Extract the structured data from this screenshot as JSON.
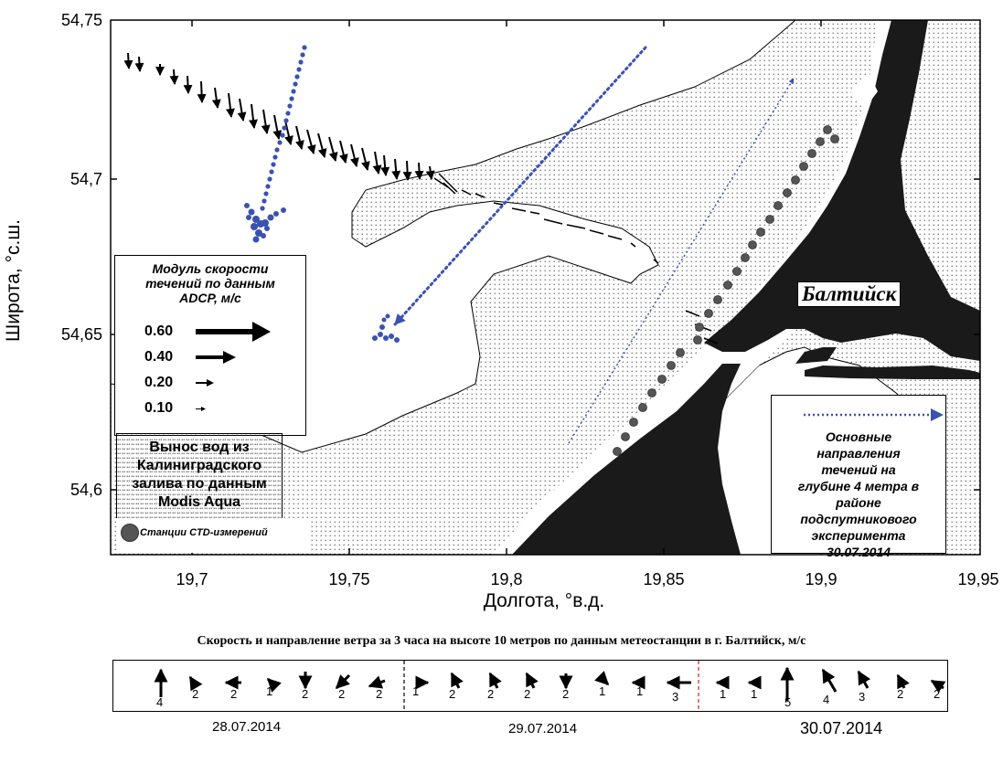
{
  "axes": {
    "ylabel": "Широта, °с.ш.",
    "xlabel": "Долгота, °в.д.",
    "yticks": [
      "54,75",
      "54,7",
      "54,65",
      "54,6"
    ],
    "xticks": [
      "19,7",
      "19,75",
      "19,8",
      "19,85",
      "19,9",
      "19,95"
    ]
  },
  "legend_speed": {
    "title": "Модуль скорости течений по данным ADCP, м/с",
    "items": [
      {
        "label": "0.60",
        "speed": 0.6
      },
      {
        "label": "0.40",
        "speed": 0.4
      },
      {
        "label": "0.20",
        "speed": 0.2
      },
      {
        "label": "0.10",
        "speed": 0.1
      }
    ]
  },
  "legend_plume": {
    "label": "Вынос вод из Калиниградского залива по данным Modis Aqua"
  },
  "legend_ctd": {
    "label": "Станции CTD-измерений"
  },
  "legend_directions": {
    "label": "Основные направления течений на глубине 4 метра в районе подспутникового эксперимента 30.07.2014"
  },
  "city_label": "Балтийск",
  "wind": {
    "title": "Скорость и направление ветра за 3 часа на высоте 10 метров по данным метеостанции в г. Балтийск, м/с",
    "dates": [
      "28.07.2014",
      "29.07.2014",
      "30.07.2014"
    ],
    "values": [
      "4",
      "2",
      "2",
      "1",
      "2",
      "2",
      "2",
      "1",
      "2",
      "2",
      "2",
      "2",
      "1",
      "1",
      "3",
      "1",
      "1",
      "5",
      "4",
      "3",
      "2",
      "2"
    ]
  },
  "colors": {
    "track": "#3a52b0",
    "land": "#1a1a1a",
    "ctd": "#555555",
    "divider_red": "#d81e1e"
  }
}
